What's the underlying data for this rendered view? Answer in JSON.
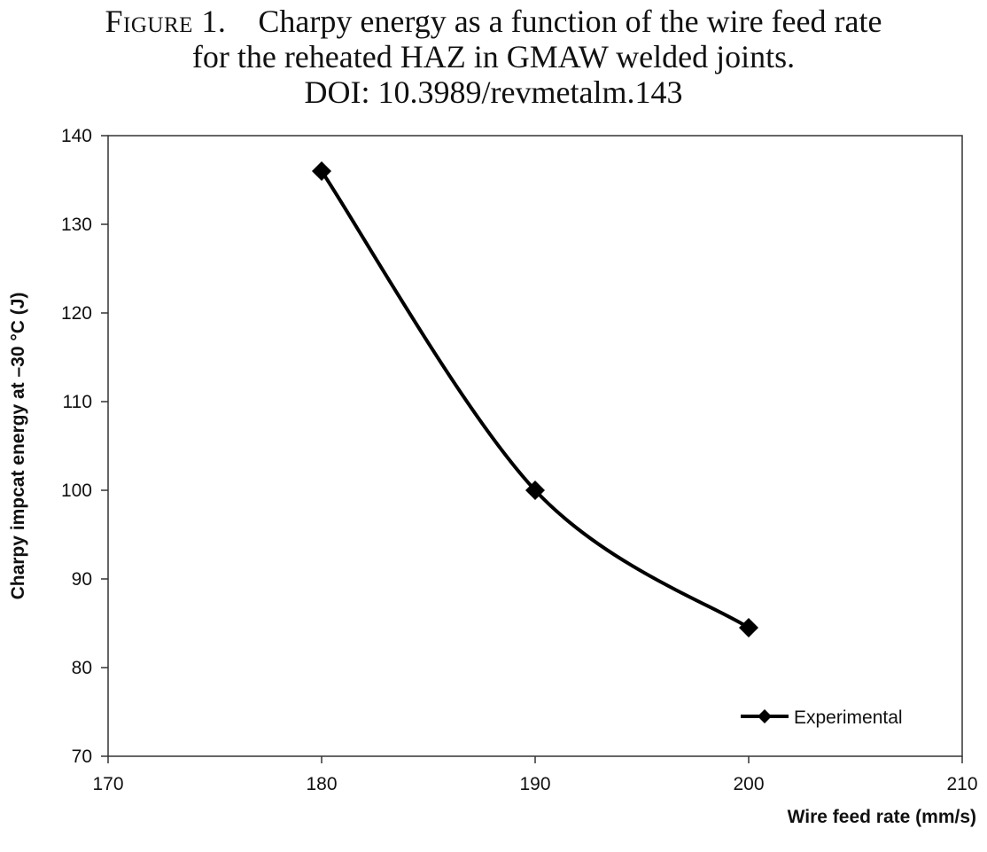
{
  "caption": {
    "label": "Figure 1.",
    "line1": "Charpy energy as a function of the wire feed rate",
    "line2": "for the reheated HAZ in GMAW welded joints.",
    "line3": "DOI: 10.3989/revmetalm.143"
  },
  "chart_data": {
    "type": "line",
    "title": "",
    "xlabel": "Wire feed rate (mm/s)",
    "ylabel": "Charpy impcat energy at –30 °C (J)",
    "xlim": [
      170,
      210
    ],
    "ylim": [
      70,
      140
    ],
    "xticks": [
      170,
      180,
      190,
      200,
      210
    ],
    "yticks": [
      70,
      80,
      90,
      100,
      110,
      120,
      130,
      140
    ],
    "grid": false,
    "legend_position": "bottom-right",
    "smooth": true,
    "marker": "diamond",
    "line_color": "#000000",
    "series": [
      {
        "name": "Experimental",
        "x": [
          180,
          190,
          200
        ],
        "values": [
          136,
          100,
          84.5
        ]
      }
    ]
  }
}
